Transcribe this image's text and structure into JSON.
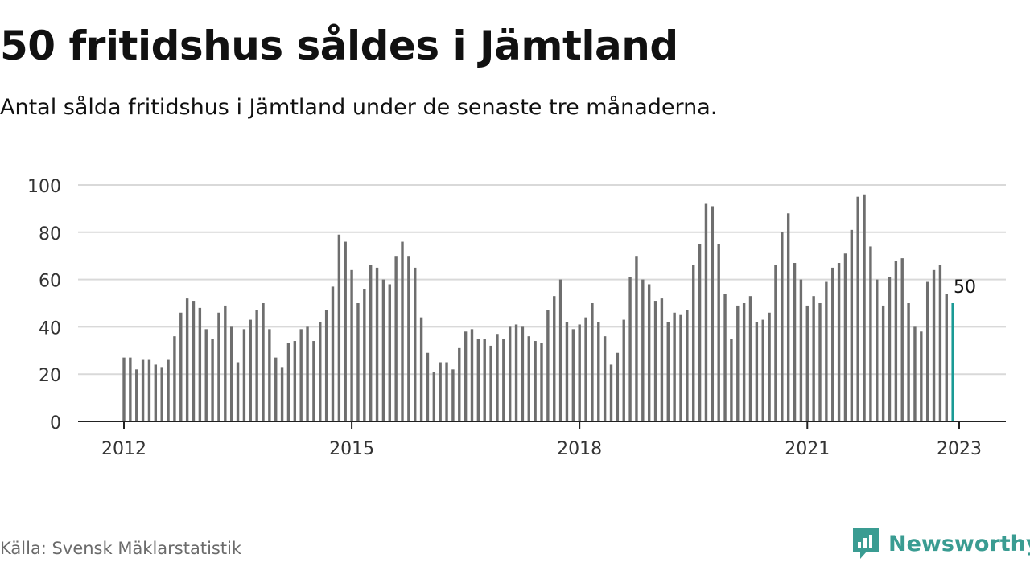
{
  "header": {
    "title": "50 fritidshus såldes i Jämtland",
    "subtitle": "Antal sålda fritidshus i Jämtland under de senaste tre månaderna."
  },
  "footer": {
    "source": "Källa: Svensk Mäklarstatistik",
    "brand": "Newsworthy"
  },
  "colors": {
    "bar": "#6e6e6e",
    "highlight": "#1a9a95",
    "grid": "#d9d9d9",
    "axis": "#222222",
    "brand": "#3a9c92"
  },
  "icons": {
    "brand_logo": "newsworthy-logo-icon"
  },
  "chart_data": {
    "type": "bar",
    "title": "50 fritidshus såldes i Jämtland",
    "subtitle": "Antal sålda fritidshus i Jämtland under de senaste tre månaderna.",
    "xlabel": "",
    "ylabel": "",
    "x_start": "2012-01",
    "x_end": "2023-01",
    "x_ticks": [
      {
        "label": "2012",
        "date": "2012-01"
      },
      {
        "label": "2015",
        "date": "2015-01"
      },
      {
        "label": "2018",
        "date": "2018-01"
      },
      {
        "label": "2021",
        "date": "2021-01"
      },
      {
        "label": "2023",
        "date": "2023-01"
      }
    ],
    "y_ticks": [
      0,
      20,
      40,
      60,
      80,
      100
    ],
    "ylim": [
      0,
      100
    ],
    "grid": true,
    "highlight_label": "50",
    "series": [
      {
        "values": [
          27,
          27,
          22,
          26,
          26,
          24,
          23,
          26,
          36,
          46,
          52,
          51,
          48,
          39,
          35,
          46,
          49,
          40,
          25,
          39,
          43,
          47,
          50,
          39,
          27,
          23,
          33,
          34,
          39,
          40,
          34,
          42,
          47,
          57,
          79,
          76,
          64,
          50,
          56,
          66,
          65,
          60,
          58,
          70,
          76,
          70,
          65,
          44,
          29,
          21,
          25,
          25,
          22,
          31,
          38,
          39,
          35,
          35,
          32,
          37,
          35,
          40,
          41,
          40,
          36,
          34,
          33,
          47,
          53,
          60,
          42,
          39,
          41,
          44,
          50,
          42,
          36,
          24,
          29,
          43,
          61,
          70,
          60,
          58,
          51,
          52,
          42,
          46,
          45,
          47,
          66,
          75,
          92,
          91,
          75,
          54,
          35,
          49,
          50,
          53,
          42,
          43,
          46,
          66,
          80,
          88,
          67,
          60,
          49,
          53,
          50,
          59,
          65,
          67,
          71,
          81,
          95,
          96,
          74,
          60,
          49,
          61,
          68,
          69,
          50,
          40,
          38,
          59,
          64,
          66,
          54,
          50
        ]
      }
    ]
  }
}
